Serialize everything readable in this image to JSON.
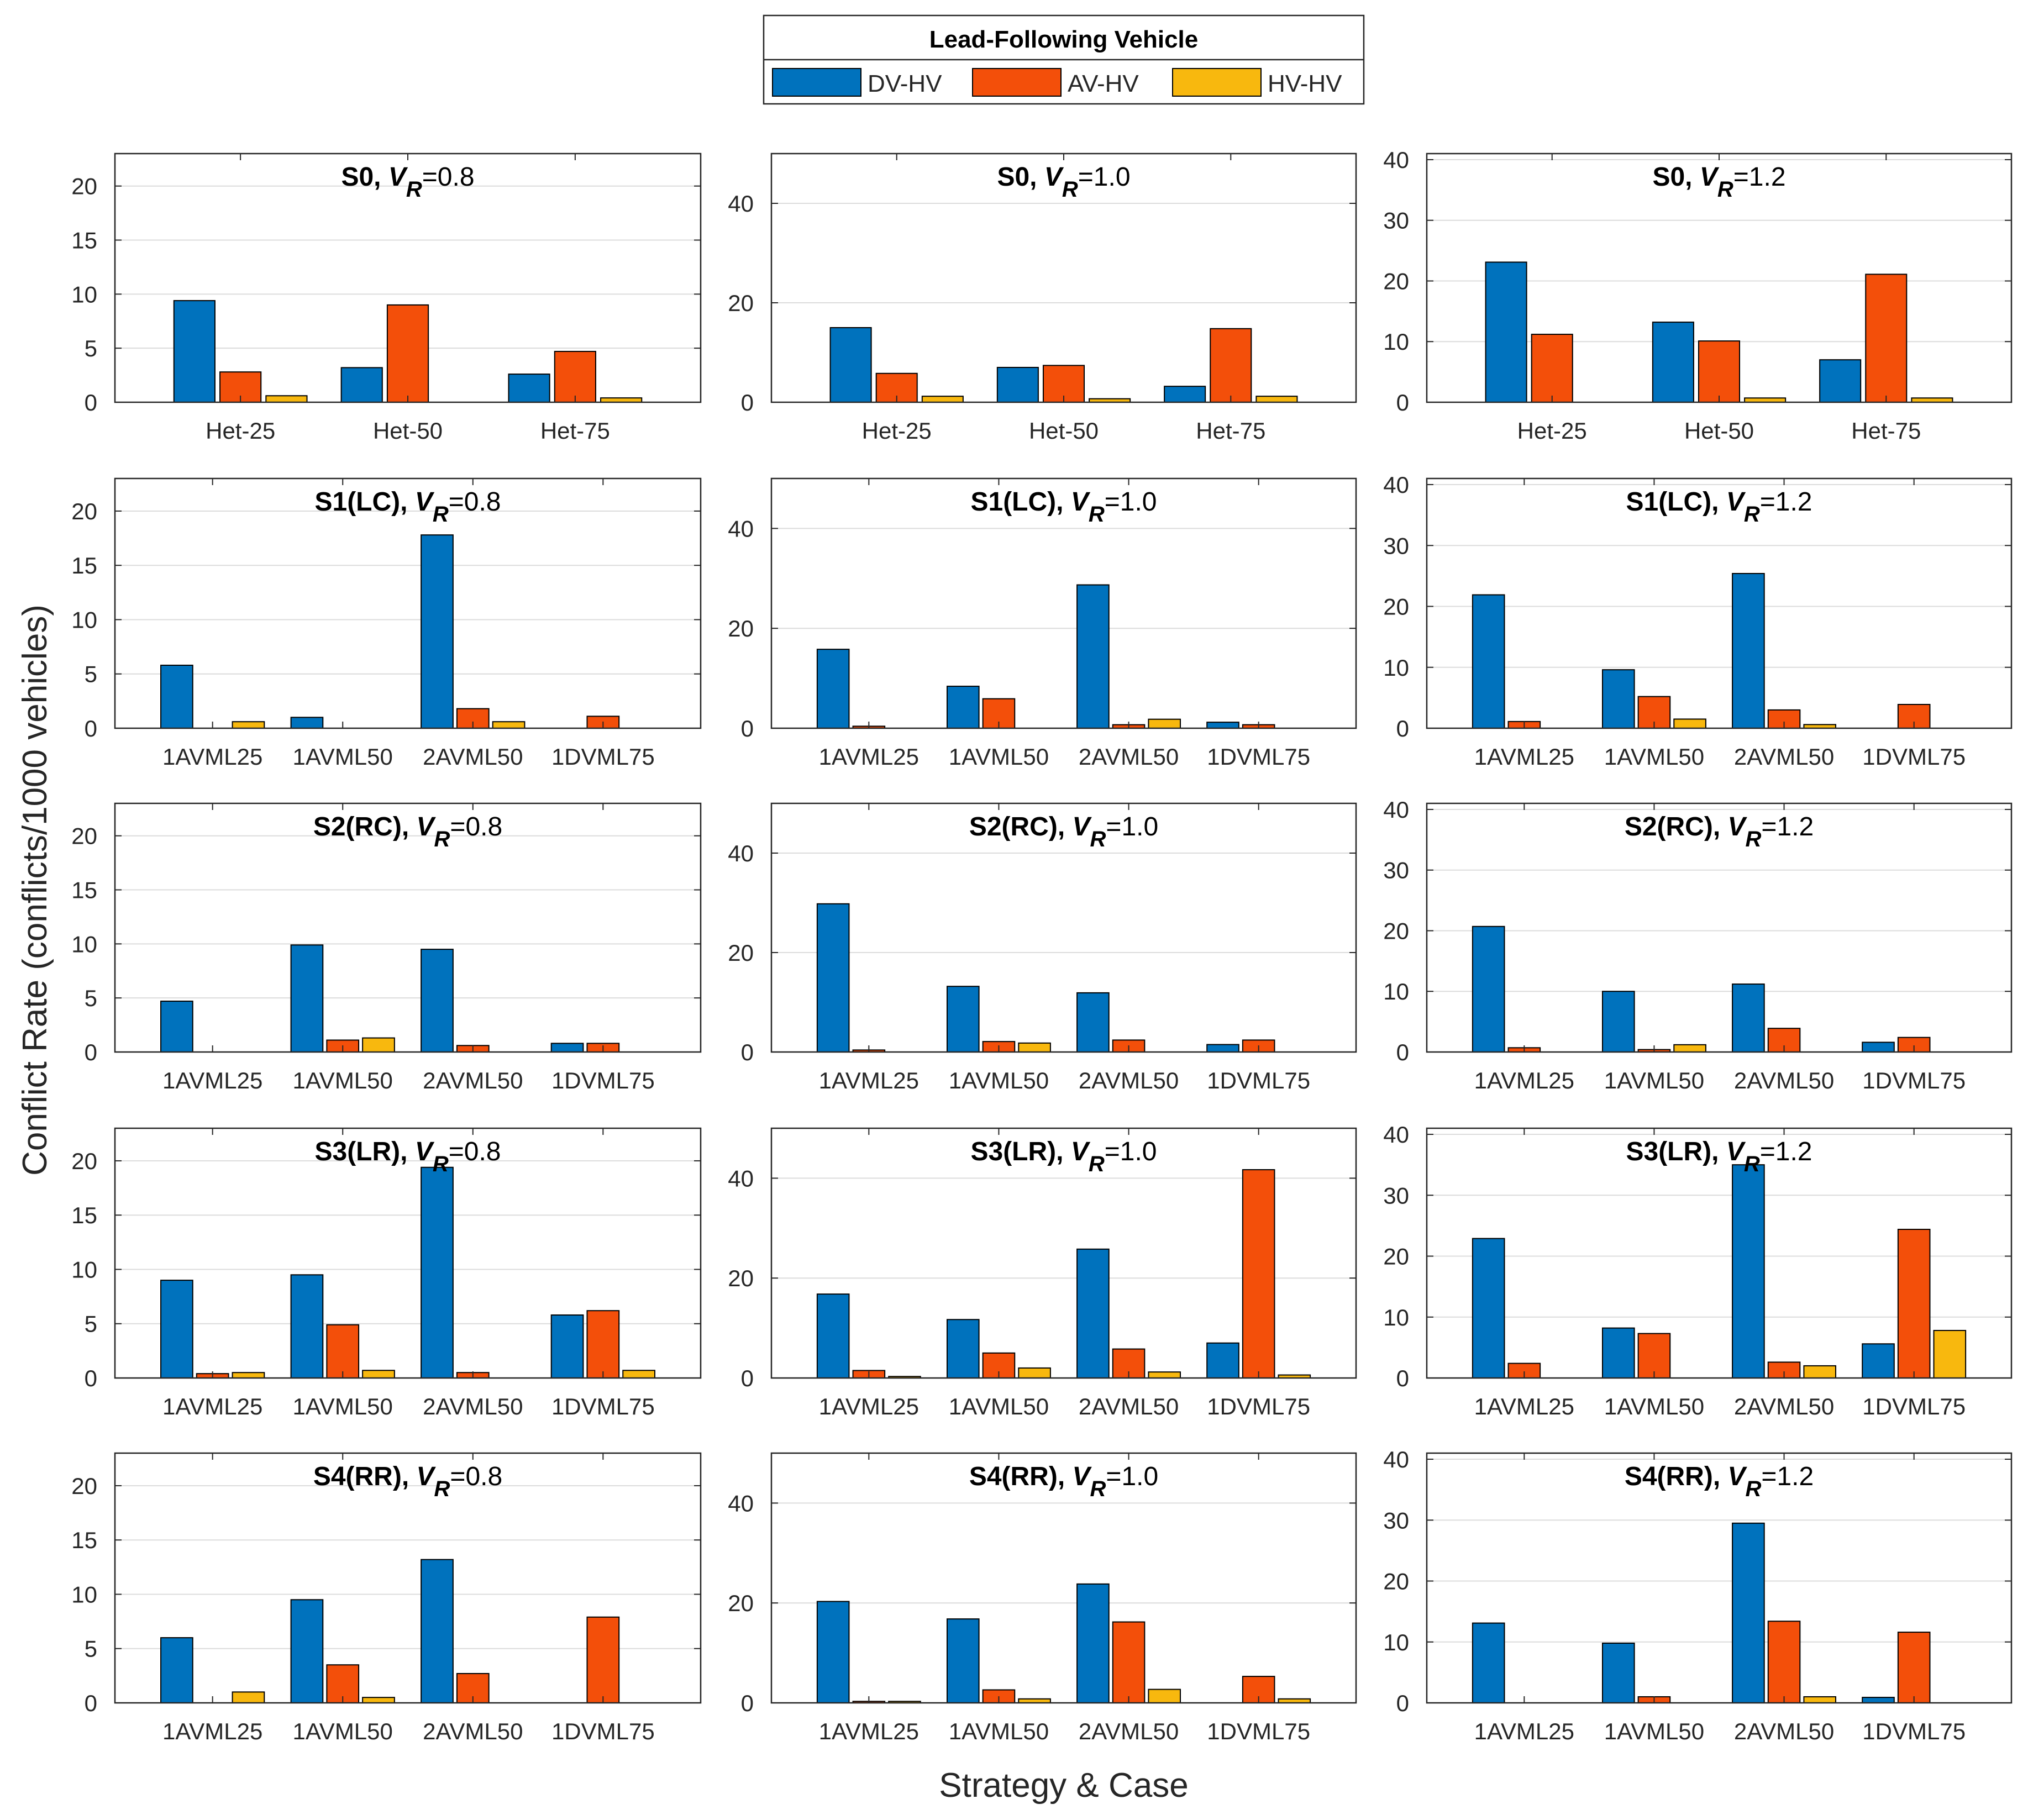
{
  "figure": {
    "ylabel": "Conflict Rate (conflicts/1000 vehicles)",
    "xlabel": "Strategy & Case"
  },
  "legend": {
    "title": "Lead-Following Vehicle",
    "entries": [
      {
        "name": "DV-HV",
        "color": "#0072BD"
      },
      {
        "name": "AV-HV",
        "color": "#F34F0A"
      },
      {
        "name": "HV-HV",
        "color": "#F8B80E"
      }
    ]
  },
  "chart_data": [
    {
      "type": "bar",
      "row": 0,
      "col": 0,
      "title": "S0, ",
      "vr": "=0.8",
      "categories": [
        "Het-25",
        "Het-50",
        "Het-75"
      ],
      "ylim": [
        0,
        23
      ],
      "yticks": [
        0,
        5,
        10,
        15,
        20
      ],
      "series": [
        {
          "name": "DV-HV",
          "values": [
            9.4,
            3.2,
            2.6
          ]
        },
        {
          "name": "AV-HV",
          "values": [
            2.8,
            9.0,
            4.7
          ]
        },
        {
          "name": "HV-HV",
          "values": [
            0.6,
            0,
            0.4
          ]
        }
      ]
    },
    {
      "type": "bar",
      "row": 0,
      "col": 1,
      "title": "S0, ",
      "vr": "=1.0",
      "categories": [
        "Het-25",
        "Het-50",
        "Het-75"
      ],
      "ylim": [
        0,
        50
      ],
      "yticks": [
        0,
        20,
        40
      ],
      "series": [
        {
          "name": "DV-HV",
          "values": [
            15.0,
            7.0,
            3.2
          ]
        },
        {
          "name": "AV-HV",
          "values": [
            5.8,
            7.4,
            14.8
          ]
        },
        {
          "name": "HV-HV",
          "values": [
            1.2,
            0.7,
            1.2
          ]
        }
      ]
    },
    {
      "type": "bar",
      "row": 0,
      "col": 2,
      "title": "S0, ",
      "vr": "=1.2",
      "categories": [
        "Het-25",
        "Het-50",
        "Het-75"
      ],
      "ylim": [
        0,
        41
      ],
      "yticks": [
        0,
        10,
        20,
        30,
        40
      ],
      "series": [
        {
          "name": "DV-HV",
          "values": [
            23.1,
            13.2,
            7.0
          ]
        },
        {
          "name": "AV-HV",
          "values": [
            11.2,
            10.1,
            21.1
          ]
        },
        {
          "name": "HV-HV",
          "values": [
            0,
            0.7,
            0.7
          ]
        }
      ]
    },
    {
      "type": "bar",
      "row": 1,
      "col": 0,
      "title": "S1(LC), ",
      "vr": "=0.8",
      "categories": [
        "1AVML25",
        "1AVML50",
        "2AVML50",
        "1DVML75"
      ],
      "ylim": [
        0,
        23
      ],
      "yticks": [
        0,
        5,
        10,
        15,
        20
      ],
      "series": [
        {
          "name": "DV-HV",
          "values": [
            5.8,
            1.0,
            17.8,
            0
          ]
        },
        {
          "name": "AV-HV",
          "values": [
            0,
            0,
            1.8,
            1.1
          ]
        },
        {
          "name": "HV-HV",
          "values": [
            0.6,
            0,
            0.6,
            0
          ]
        }
      ]
    },
    {
      "type": "bar",
      "row": 1,
      "col": 1,
      "title": "S1(LC), ",
      "vr": "=1.0",
      "categories": [
        "1AVML25",
        "1AVML50",
        "2AVML50",
        "1DVML75"
      ],
      "ylim": [
        0,
        50
      ],
      "yticks": [
        0,
        20,
        40
      ],
      "series": [
        {
          "name": "DV-HV",
          "values": [
            15.8,
            8.4,
            28.7,
            1.2
          ]
        },
        {
          "name": "AV-HV",
          "values": [
            0.4,
            5.9,
            0.7,
            0.7
          ]
        },
        {
          "name": "HV-HV",
          "values": [
            0,
            0,
            1.8,
            0
          ]
        }
      ]
    },
    {
      "type": "bar",
      "row": 1,
      "col": 2,
      "title": "S1(LC), ",
      "vr": "=1.2",
      "categories": [
        "1AVML25",
        "1AVML50",
        "2AVML50",
        "1DVML75"
      ],
      "ylim": [
        0,
        41
      ],
      "yticks": [
        0,
        10,
        20,
        30,
        40
      ],
      "series": [
        {
          "name": "DV-HV",
          "values": [
            21.9,
            9.6,
            25.4,
            0
          ]
        },
        {
          "name": "AV-HV",
          "values": [
            1.1,
            5.2,
            3.0,
            3.9
          ]
        },
        {
          "name": "HV-HV",
          "values": [
            0,
            1.5,
            0.6,
            0
          ]
        }
      ]
    },
    {
      "type": "bar",
      "row": 2,
      "col": 0,
      "title": "S2(RC), ",
      "vr": "=0.8",
      "categories": [
        "1AVML25",
        "1AVML50",
        "2AVML50",
        "1DVML75"
      ],
      "ylim": [
        0,
        23
      ],
      "yticks": [
        0,
        5,
        10,
        15,
        20
      ],
      "series": [
        {
          "name": "DV-HV",
          "values": [
            4.7,
            9.9,
            9.5,
            0.8
          ]
        },
        {
          "name": "AV-HV",
          "values": [
            0,
            1.1,
            0.6,
            0.8
          ]
        },
        {
          "name": "HV-HV",
          "values": [
            0,
            1.3,
            0,
            0
          ]
        }
      ]
    },
    {
      "type": "bar",
      "row": 2,
      "col": 1,
      "title": "S2(RC), ",
      "vr": "=1.0",
      "categories": [
        "1AVML25",
        "1AVML50",
        "2AVML50",
        "1DVML75"
      ],
      "ylim": [
        0,
        50
      ],
      "yticks": [
        0,
        20,
        40
      ],
      "series": [
        {
          "name": "DV-HV",
          "values": [
            29.8,
            13.2,
            11.9,
            1.5
          ]
        },
        {
          "name": "AV-HV",
          "values": [
            0.4,
            2.1,
            2.4,
            2.4
          ]
        },
        {
          "name": "HV-HV",
          "values": [
            0,
            1.8,
            0,
            0
          ]
        }
      ]
    },
    {
      "type": "bar",
      "row": 2,
      "col": 2,
      "title": "S2(RC), ",
      "vr": "=1.2",
      "categories": [
        "1AVML25",
        "1AVML50",
        "2AVML50",
        "1DVML75"
      ],
      "ylim": [
        0,
        41
      ],
      "yticks": [
        0,
        10,
        20,
        30,
        40
      ],
      "series": [
        {
          "name": "DV-HV",
          "values": [
            20.7,
            10.0,
            11.2,
            1.6
          ]
        },
        {
          "name": "AV-HV",
          "values": [
            0.7,
            0.4,
            3.9,
            2.4
          ]
        },
        {
          "name": "HV-HV",
          "values": [
            0,
            1.2,
            0,
            0
          ]
        }
      ]
    },
    {
      "type": "bar",
      "row": 3,
      "col": 0,
      "title": "S3(LR), ",
      "vr": "=0.8",
      "categories": [
        "1AVML25",
        "1AVML50",
        "2AVML50",
        "1DVML75"
      ],
      "ylim": [
        0,
        23
      ],
      "yticks": [
        0,
        5,
        10,
        15,
        20
      ],
      "series": [
        {
          "name": "DV-HV",
          "values": [
            9.0,
            9.5,
            19.4,
            5.8
          ]
        },
        {
          "name": "AV-HV",
          "values": [
            0.4,
            4.9,
            0.5,
            6.2
          ]
        },
        {
          "name": "HV-HV",
          "values": [
            0.5,
            0.7,
            0,
            0.7
          ]
        }
      ]
    },
    {
      "type": "bar",
      "row": 3,
      "col": 1,
      "title": "S3(LR), ",
      "vr": "=1.0",
      "categories": [
        "1AVML25",
        "1AVML50",
        "2AVML50",
        "1DVML75"
      ],
      "ylim": [
        0,
        50
      ],
      "yticks": [
        0,
        20,
        40
      ],
      "series": [
        {
          "name": "DV-HV",
          "values": [
            16.8,
            11.7,
            25.8,
            7.0
          ]
        },
        {
          "name": "AV-HV",
          "values": [
            1.5,
            5.0,
            5.8,
            41.7
          ]
        },
        {
          "name": "HV-HV",
          "values": [
            0.3,
            2.0,
            1.2,
            0.6
          ]
        }
      ]
    },
    {
      "type": "bar",
      "row": 3,
      "col": 2,
      "title": "S3(LR), ",
      "vr": "=1.2",
      "categories": [
        "1AVML25",
        "1AVML50",
        "2AVML50",
        "1DVML75"
      ],
      "ylim": [
        0,
        41
      ],
      "yticks": [
        0,
        10,
        20,
        30,
        40
      ],
      "series": [
        {
          "name": "DV-HV",
          "values": [
            22.9,
            8.2,
            35.0,
            5.6
          ]
        },
        {
          "name": "AV-HV",
          "values": [
            2.4,
            7.3,
            2.6,
            24.4
          ]
        },
        {
          "name": "HV-HV",
          "values": [
            0,
            0,
            2.0,
            7.8
          ]
        }
      ]
    },
    {
      "type": "bar",
      "row": 4,
      "col": 0,
      "title": "S4(RR), ",
      "vr": "=0.8",
      "categories": [
        "1AVML25",
        "1AVML50",
        "2AVML50",
        "1DVML75"
      ],
      "ylim": [
        0,
        23
      ],
      "yticks": [
        0,
        5,
        10,
        15,
        20
      ],
      "series": [
        {
          "name": "DV-HV",
          "values": [
            6.0,
            9.5,
            13.2,
            0
          ]
        },
        {
          "name": "AV-HV",
          "values": [
            0,
            3.5,
            2.7,
            7.9
          ]
        },
        {
          "name": "HV-HV",
          "values": [
            1.0,
            0.5,
            0,
            0
          ]
        }
      ]
    },
    {
      "type": "bar",
      "row": 4,
      "col": 1,
      "title": "S4(RR), ",
      "vr": "=1.0",
      "categories": [
        "1AVML25",
        "1AVML50",
        "2AVML50",
        "1DVML75"
      ],
      "ylim": [
        0,
        50
      ],
      "yticks": [
        0,
        20,
        40
      ],
      "series": [
        {
          "name": "DV-HV",
          "values": [
            20.3,
            16.8,
            23.8,
            0
          ]
        },
        {
          "name": "AV-HV",
          "values": [
            0.3,
            2.6,
            16.2,
            5.3
          ]
        },
        {
          "name": "HV-HV",
          "values": [
            0.3,
            0.8,
            2.7,
            0.8
          ]
        }
      ]
    },
    {
      "type": "bar",
      "row": 4,
      "col": 2,
      "title": "S4(RR), ",
      "vr": "=1.2",
      "categories": [
        "1AVML25",
        "1AVML50",
        "2AVML50",
        "1DVML75"
      ],
      "ylim": [
        0,
        41
      ],
      "yticks": [
        0,
        10,
        20,
        30,
        40
      ],
      "series": [
        {
          "name": "DV-HV",
          "values": [
            13.1,
            9.8,
            29.5,
            0.9
          ]
        },
        {
          "name": "AV-HV",
          "values": [
            0,
            1.0,
            13.4,
            11.6
          ]
        },
        {
          "name": "HV-HV",
          "values": [
            0,
            0,
            1.0,
            0
          ]
        }
      ]
    }
  ]
}
